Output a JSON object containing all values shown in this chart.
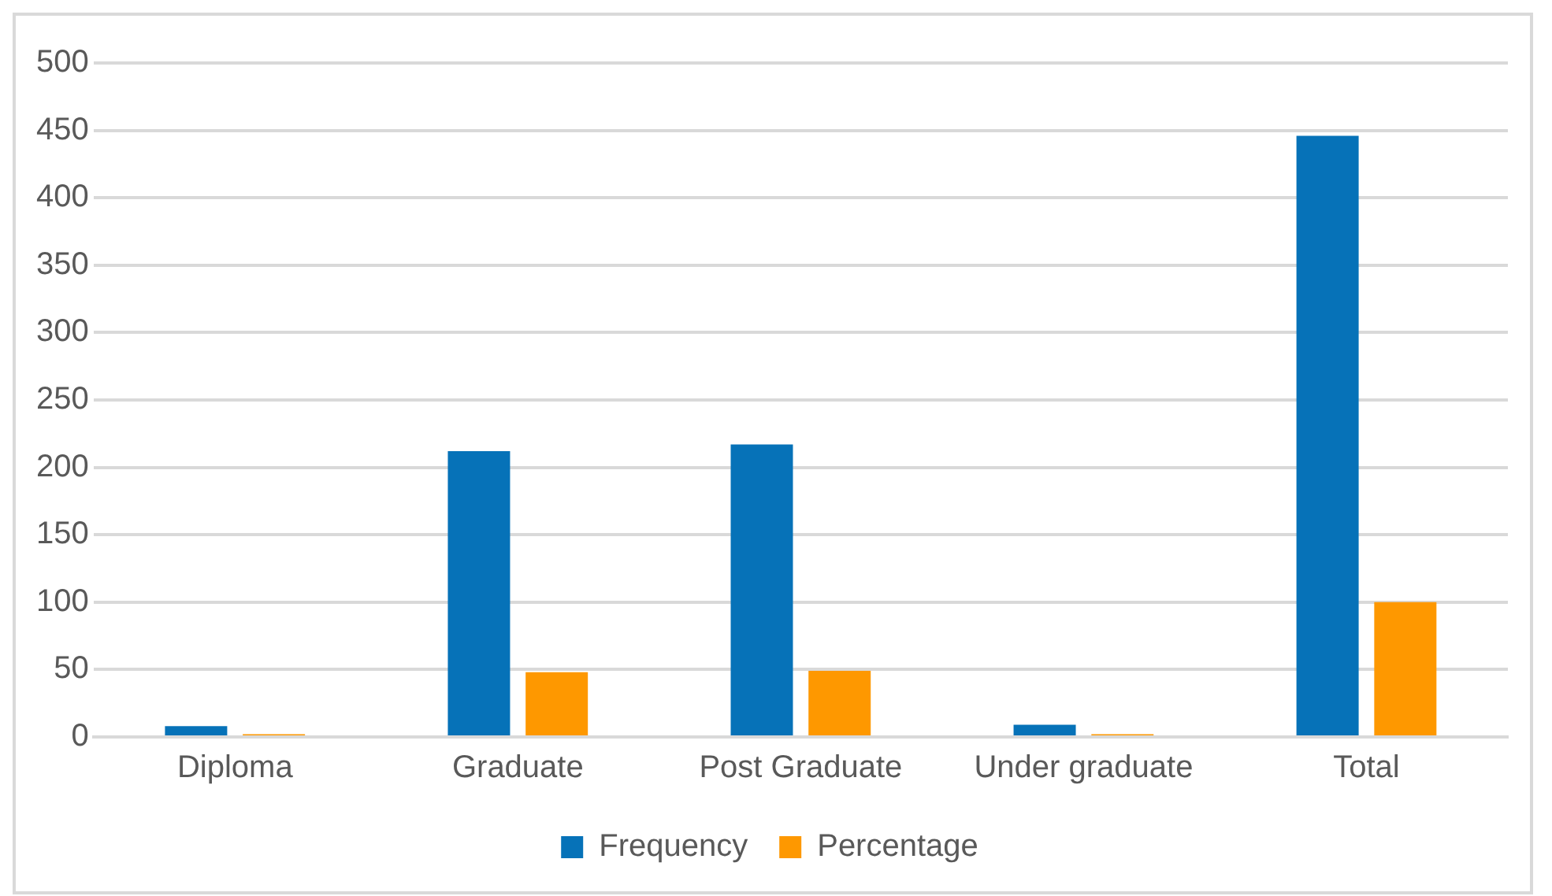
{
  "chart_data": {
    "type": "bar",
    "categories": [
      "Diploma",
      "Graduate",
      "Post Graduate",
      "Under graduate",
      "Total"
    ],
    "series": [
      {
        "name": "Frequency",
        "color": "#0672b8",
        "values": [
          8,
          212,
          217,
          9,
          446
        ]
      },
      {
        "name": "Percentage",
        "color": "#fe9800",
        "values": [
          2,
          48,
          49,
          2,
          100
        ]
      }
    ],
    "ylim": [
      0,
      500
    ],
    "yticks": [
      0,
      50,
      100,
      150,
      200,
      250,
      300,
      350,
      400,
      450,
      500
    ],
    "grid": "y",
    "legend": "bottom"
  }
}
